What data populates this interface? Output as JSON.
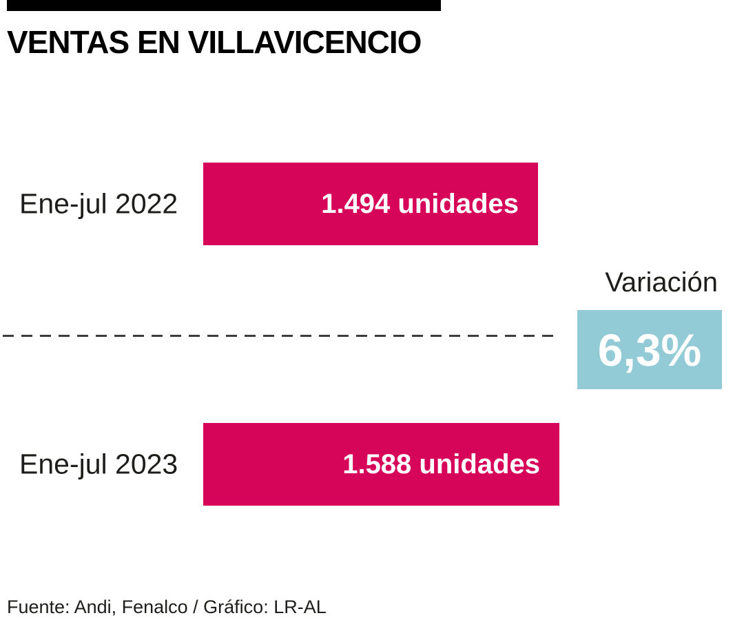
{
  "chart_data": {
    "type": "bar",
    "orientation": "horizontal",
    "title": "VENTAS EN VILLAVICENCIO",
    "categories": [
      "Ene-jul 2022",
      "Ene-jul 2023"
    ],
    "values": [
      1494,
      1588
    ],
    "value_labels": [
      "1.494 unidades",
      "1.588 unidades"
    ],
    "annotation": {
      "label": "Variación",
      "value": "6,3%"
    },
    "source": "Fuente: Andi, Fenalco / Gráfico: LR-AL",
    "xlim": [
      0,
      1588
    ],
    "grid": false,
    "legend": false,
    "colors": {
      "bar": "#d6055a",
      "annotation_box": "#92cbd5",
      "bar_text": "#ffffff",
      "text": "#1d1d1b",
      "accent_bar": "#000000"
    }
  }
}
